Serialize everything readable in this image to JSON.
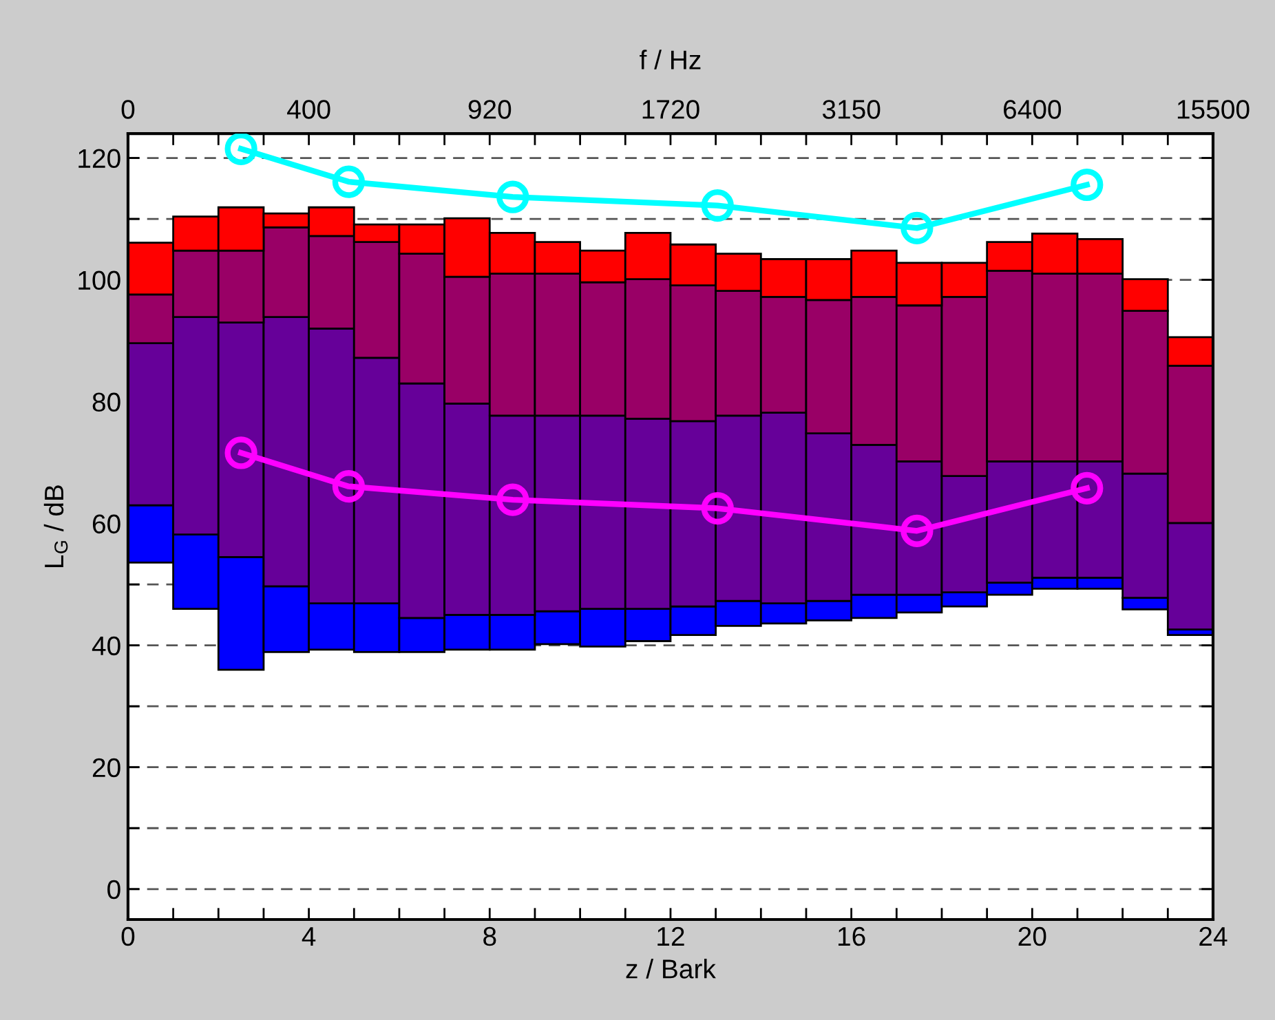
{
  "chart_data": {
    "type": "bar",
    "xlabel": "z / Bark",
    "ylabel": "L$_{G}$ / dB",
    "x2label": "f / Hz",
    "x": [
      0.5,
      1.5,
      2.5,
      3.5,
      4.5,
      5.5,
      6.5,
      7.5,
      8.5,
      9.5,
      10.5,
      11.5,
      12.5,
      13.5,
      14.5,
      15.5,
      16.5,
      17.5,
      18.5,
      19.5,
      20.5,
      21.5,
      22.5,
      23.5
    ],
    "series": [
      {
        "color": "#0000ff",
        "base": [
          53.6,
          46.0,
          36.0,
          38.9,
          39.3,
          38.9,
          38.9,
          39.3,
          39.3,
          40.2,
          39.8,
          40.7,
          41.7,
          43.2,
          43.6,
          44.1,
          44.5,
          45.4,
          46.4,
          48.3,
          49.3,
          49.3,
          45.9,
          41.7
        ],
        "values": [
          9.4,
          12.2,
          18.5,
          10.8,
          7.6,
          8.0,
          5.6,
          5.7,
          5.7,
          5.4,
          6.2,
          5.3,
          4.7,
          4.1,
          3.3,
          3.2,
          3.8,
          2.9,
          2.3,
          2.0,
          1.8,
          1.8,
          1.9,
          0.9
        ]
      },
      {
        "color": "#660099",
        "base": [
          63.0,
          58.2,
          54.5,
          49.7,
          46.9,
          46.9,
          44.5,
          45.0,
          45.0,
          45.6,
          46.0,
          46.0,
          46.4,
          47.3,
          46.9,
          47.3,
          48.3,
          48.3,
          48.7,
          50.3,
          51.1,
          51.1,
          47.8,
          42.6
        ],
        "values": [
          26.6,
          35.7,
          38.5,
          44.2,
          45.1,
          40.3,
          38.5,
          34.7,
          32.7,
          32.1,
          31.7,
          31.2,
          30.4,
          30.4,
          31.3,
          27.5,
          24.6,
          21.9,
          19.1,
          19.9,
          19.1,
          19.1,
          20.4,
          17.5
        ]
      },
      {
        "color": "#990066",
        "base": [
          89.6,
          93.9,
          93.0,
          93.9,
          92.0,
          87.2,
          83.0,
          79.7,
          77.7,
          77.7,
          77.7,
          77.2,
          76.8,
          77.7,
          78.2,
          74.8,
          72.9,
          70.2,
          67.8,
          70.2,
          70.2,
          70.2,
          68.2,
          60.1
        ],
        "values": [
          8.0,
          10.9,
          11.8,
          14.7,
          15.2,
          19.0,
          21.3,
          20.8,
          23.3,
          23.3,
          21.9,
          22.9,
          22.3,
          20.5,
          19.0,
          21.9,
          24.3,
          25.6,
          29.4,
          31.3,
          30.8,
          30.8,
          26.7,
          25.8
        ]
      },
      {
        "color": "#ff0000",
        "base": [
          97.6,
          104.8,
          104.8,
          108.6,
          107.2,
          106.2,
          104.3,
          100.5,
          101.0,
          101.0,
          99.6,
          100.1,
          99.1,
          98.2,
          97.2,
          96.7,
          97.2,
          95.8,
          97.2,
          101.5,
          101.0,
          101.0,
          94.9,
          85.9
        ],
        "values": [
          8.5,
          5.6,
          7.1,
          2.3,
          4.7,
          2.9,
          4.8,
          9.6,
          6.7,
          5.2,
          5.2,
          7.6,
          6.7,
          6.1,
          6.2,
          6.7,
          7.6,
          7.0,
          5.6,
          4.7,
          6.6,
          5.7,
          5.2,
          4.7
        ]
      },
      {
        "type": "line",
        "color": "#00ffff",
        "x": [
          2.5,
          4.88,
          8.51,
          13.04,
          17.45,
          21.21
        ],
        "values": [
          121.5,
          116.1,
          113.6,
          112.2,
          108.5,
          115.6
        ]
      },
      {
        "type": "line",
        "color": "#ff00ff",
        "x": [
          2.5,
          4.88,
          8.51,
          13.04,
          17.45,
          21.21
        ],
        "values": [
          71.6,
          66.1,
          63.9,
          62.5,
          58.8,
          65.8
        ]
      }
    ],
    "marker": "circle",
    "line_style": "solid",
    "grid": "y",
    "annotations": [
      "0",
      "400",
      "920",
      "1720",
      "3150",
      "6400",
      "15500"
    ],
    "xlim": [
      0,
      24
    ],
    "xticks": [
      0,
      {
        "value": 1,
        "label": null
      },
      {
        "value": 2,
        "label": null
      },
      {
        "value": 3,
        "label": null
      },
      4,
      {
        "value": 5,
        "label": null
      },
      {
        "value": 6,
        "label": null
      },
      {
        "value": 7,
        "label": null
      },
      8,
      {
        "value": 9,
        "label": null
      },
      {
        "value": 10,
        "label": null
      },
      {
        "value": 11,
        "label": null
      },
      12,
      {
        "value": 13,
        "label": null
      },
      {
        "value": 14,
        "label": null
      },
      {
        "value": 15,
        "label": null
      },
      16,
      {
        "value": 17,
        "label": null
      },
      {
        "value": 18,
        "label": null
      },
      {
        "value": 19,
        "label": null
      },
      20,
      {
        "value": 21,
        "label": null
      },
      {
        "value": 22,
        "label": null
      },
      {
        "value": 23,
        "label": null
      },
      24
    ],
    "ylim": [
      -5,
      124
    ],
    "yticks": [
      0,
      {
        "value": 10,
        "label": null
      },
      20,
      {
        "value": 30,
        "label": null
      },
      40,
      {
        "value": 50,
        "label": null
      },
      60,
      {
        "value": 70,
        "label": null
      },
      80,
      {
        "value": 90,
        "label": null
      },
      100,
      {
        "value": 110,
        "label": null
      },
      120
    ]
  }
}
